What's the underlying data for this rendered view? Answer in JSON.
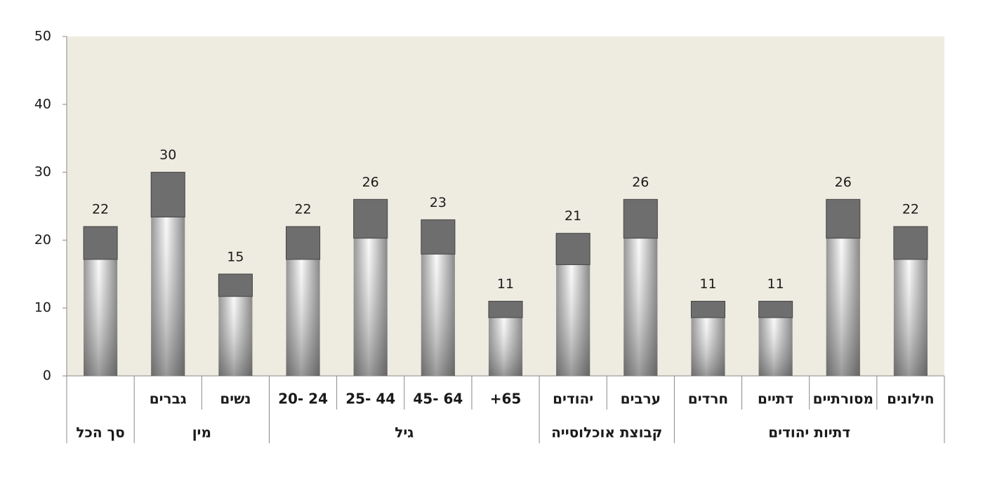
{
  "chart_data": {
    "type": "bar",
    "groups": [
      {
        "name": "סך הכל",
        "categories": [
          null
        ],
        "values": [
          22
        ]
      },
      {
        "name": "מין",
        "categories": [
          "גברים",
          "נשים"
        ],
        "values": [
          30,
          15
        ]
      },
      {
        "name": "גיל",
        "categories": [
          "20- 24",
          "25- 44",
          "45- 64",
          "+65"
        ],
        "values": [
          22,
          26,
          23,
          11
        ]
      },
      {
        "name": "קבוצת אוכלוסייה",
        "categories": [
          "יהודים",
          "ערבים"
        ],
        "values": [
          21,
          26
        ]
      },
      {
        "name": "דתיות יהודים",
        "categories": [
          "חרדים",
          "דתיים",
          "מסורתיים",
          "חילונים"
        ],
        "values": [
          11,
          11,
          26,
          22
        ]
      }
    ],
    "color": "#6e6e6e",
    "ylim": [
      0,
      50
    ],
    "yticks": [
      0,
      10,
      20,
      30,
      40,
      50
    ],
    "grid": false
  }
}
